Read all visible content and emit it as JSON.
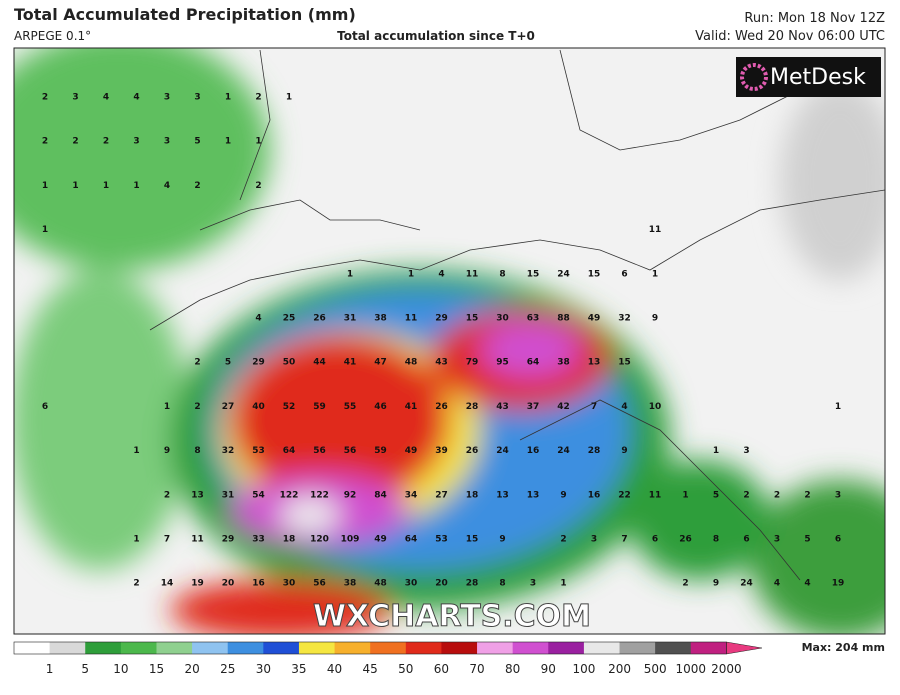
{
  "header": {
    "title": "Total Accumulated Precipitation (mm)",
    "model": "ARPEGE 0.1°",
    "subtitle": "Total accumulation since T+0",
    "run": "Run: Mon 18 Nov 12Z",
    "valid": "Valid: Wed 20 Nov 06:00 UTC"
  },
  "logo": "MetDesk",
  "watermark": "WXCHARTS.COM",
  "station_values": [
    [
      2,
      3,
      4,
      4,
      3,
      3,
      1,
      2,
      1,
      null,
      null,
      null,
      null,
      null,
      null,
      null,
      null,
      null,
      null,
      null,
      null,
      null,
      null,
      null,
      null,
      null,
      null
    ],
    [
      2,
      2,
      2,
      3,
      3,
      5,
      1,
      1,
      null,
      null,
      null,
      null,
      null,
      null,
      null,
      null,
      null,
      null,
      null,
      null,
      null,
      null,
      null,
      null,
      null,
      null,
      null
    ],
    [
      1,
      1,
      1,
      1,
      4,
      2,
      null,
      2,
      null,
      null,
      null,
      null,
      null,
      null,
      null,
      null,
      null,
      null,
      null,
      null,
      null,
      null,
      null,
      null,
      null,
      null,
      null
    ],
    [
      1,
      null,
      null,
      null,
      null,
      null,
      null,
      null,
      null,
      null,
      null,
      null,
      null,
      null,
      null,
      null,
      null,
      null,
      null,
      null,
      11,
      null,
      null,
      null,
      null,
      null,
      null
    ],
    [
      null,
      null,
      null,
      null,
      null,
      null,
      null,
      null,
      null,
      null,
      1,
      null,
      1,
      4,
      11,
      8,
      15,
      24,
      15,
      6,
      1,
      null,
      null,
      null,
      null,
      null,
      null
    ],
    [
      null,
      null,
      null,
      null,
      null,
      null,
      null,
      4,
      25,
      26,
      31,
      38,
      11,
      29,
      15,
      30,
      63,
      88,
      49,
      32,
      9,
      null,
      null,
      null,
      null,
      null,
      null
    ],
    [
      null,
      null,
      null,
      null,
      null,
      2,
      5,
      29,
      50,
      44,
      41,
      47,
      48,
      43,
      79,
      95,
      64,
      38,
      13,
      15,
      null,
      null,
      null,
      null,
      null,
      null,
      null
    ],
    [
      6,
      null,
      null,
      null,
      1,
      2,
      27,
      40,
      52,
      59,
      55,
      46,
      41,
      26,
      28,
      43,
      37,
      42,
      7,
      4,
      10,
      null,
      null,
      null,
      null,
      null,
      1
    ],
    [
      null,
      null,
      null,
      1,
      9,
      8,
      32,
      53,
      64,
      56,
      56,
      59,
      49,
      39,
      26,
      24,
      16,
      24,
      28,
      9,
      null,
      null,
      1,
      3,
      null,
      null,
      null
    ],
    [
      null,
      null,
      null,
      null,
      2,
      13,
      31,
      54,
      122,
      122,
      92,
      84,
      34,
      27,
      18,
      13,
      13,
      9,
      16,
      22,
      11,
      1,
      5,
      2,
      2,
      2,
      3
    ],
    [
      null,
      null,
      null,
      1,
      7,
      11,
      29,
      33,
      18,
      120,
      109,
      49,
      64,
      53,
      15,
      9,
      null,
      2,
      3,
      7,
      6,
      26,
      8,
      6,
      3,
      5,
      6
    ],
    [
      null,
      null,
      null,
      2,
      14,
      19,
      20,
      16,
      30,
      56,
      38,
      48,
      30,
      20,
      28,
      8,
      3,
      1,
      null,
      null,
      null,
      2,
      9,
      24,
      4,
      4,
      19
    ]
  ],
  "legend": {
    "labels": [
      1,
      5,
      10,
      15,
      20,
      25,
      30,
      35,
      40,
      45,
      50,
      60,
      70,
      80,
      90,
      100,
      200,
      500,
      1000,
      2000
    ],
    "colors": [
      "#ffffff",
      "#d9d9d9",
      "#2e9e3a",
      "#4cb84c",
      "#8fd08f",
      "#8fc3f0",
      "#3d8fe0",
      "#1f4fd6",
      "#f5e640",
      "#f7b02c",
      "#f07020",
      "#e02a1a",
      "#b80d0d",
      "#f0a0e6",
      "#d050d0",
      "#9a20a0",
      "#e8e8e8",
      "#a0a0a0",
      "#505050",
      "#c02080",
      "#e83a80"
    ],
    "max": "Max: 204 mm"
  }
}
